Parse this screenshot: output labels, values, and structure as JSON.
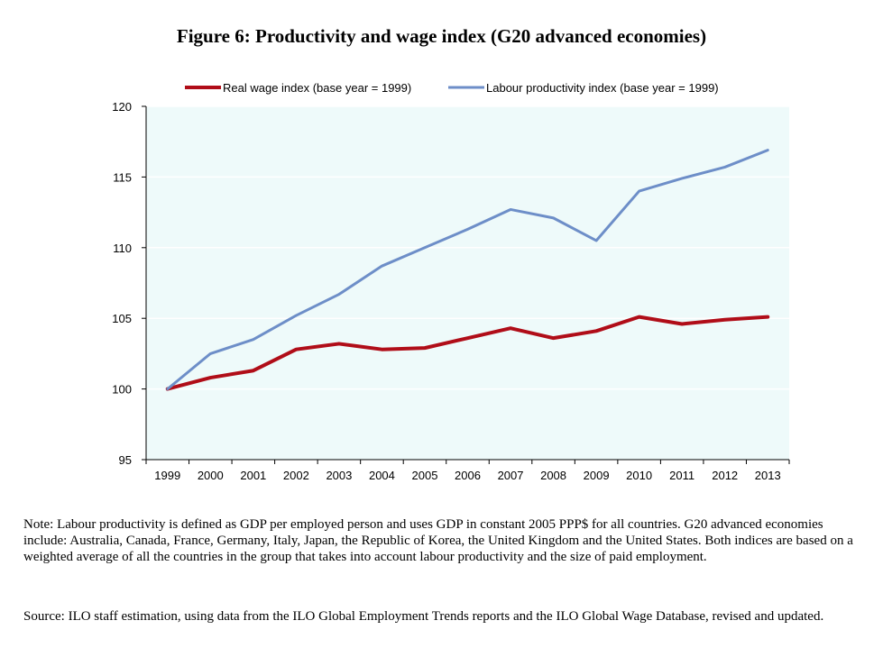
{
  "figure_title": "Figure 6:  Productivity and wage index (G20 advanced economies)",
  "note": "Note: Labour productivity is defined as GDP per employed person and uses GDP in constant 2005 PPP$ for all countries.  G20 advanced economies include: Australia, Canada, France, Germany, Italy, Japan, the Republic of Korea, the United Kingdom and the United States.  Both indices are based on a weighted average of all the countries in the group that takes into account labour productivity and the size of paid employment.",
  "source": "Source: ILO staff estimation, using data from the ILO Global Employment Trends reports and the ILO Global Wage Database, revised and updated.",
  "colors": {
    "plot_bg": "#eefafa",
    "wage": "#b00d18",
    "productivity": "#6d8ec8",
    "grid": "#ffffff"
  },
  "chart_data": {
    "type": "line",
    "title": "Figure 6:  Productivity and wage index (G20 advanced economies)",
    "x": [
      "1999",
      "2000",
      "2001",
      "2002",
      "2003",
      "2004",
      "2005",
      "2006",
      "2007",
      "2008",
      "2009",
      "2010",
      "2011",
      "2012",
      "2013"
    ],
    "yticks": [
      "95",
      "100",
      "105",
      "110",
      "115",
      "120"
    ],
    "ylim": [
      95,
      120
    ],
    "grid": true,
    "legend_position": "top",
    "series": [
      {
        "name": "Real wage index (base year = 1999)",
        "values": [
          100,
          100.8,
          101.3,
          102.8,
          103.2,
          102.8,
          102.9,
          103.6,
          104.3,
          103.6,
          104.1,
          105.1,
          104.6,
          104.9,
          105.1
        ]
      },
      {
        "name": "Labour productivity index (base year = 1999)",
        "values": [
          100,
          102.5,
          103.5,
          105.2,
          106.7,
          108.7,
          110.0,
          111.3,
          112.7,
          112.1,
          110.5,
          114.0,
          114.9,
          115.7,
          116.9
        ]
      }
    ]
  }
}
